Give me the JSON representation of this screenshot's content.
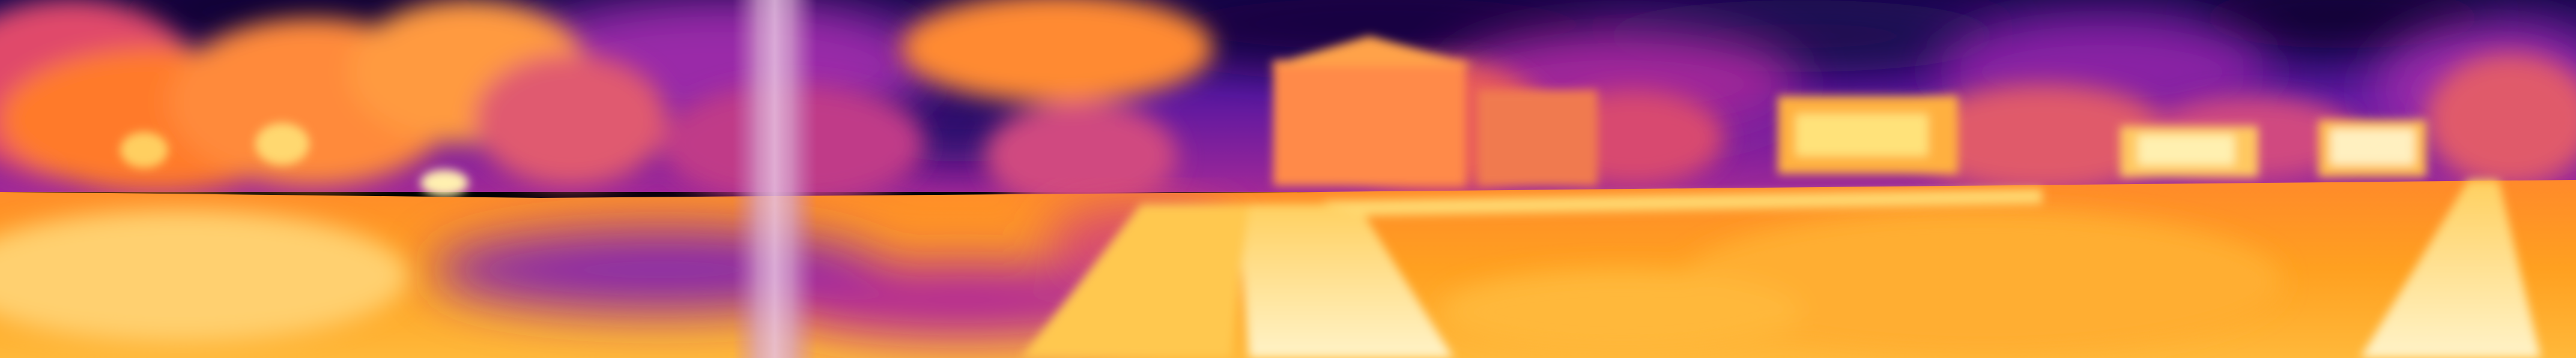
{
  "image": {
    "kind": "thermal-panorama",
    "palette": "inferno",
    "palette_colors": [
      "#0b0530",
      "#3a0f7a",
      "#7a1fa8",
      "#b0289a",
      "#e04a6a",
      "#ff7a2a",
      "#ffb020",
      "#ffe27a",
      "#fff8d8"
    ]
  }
}
